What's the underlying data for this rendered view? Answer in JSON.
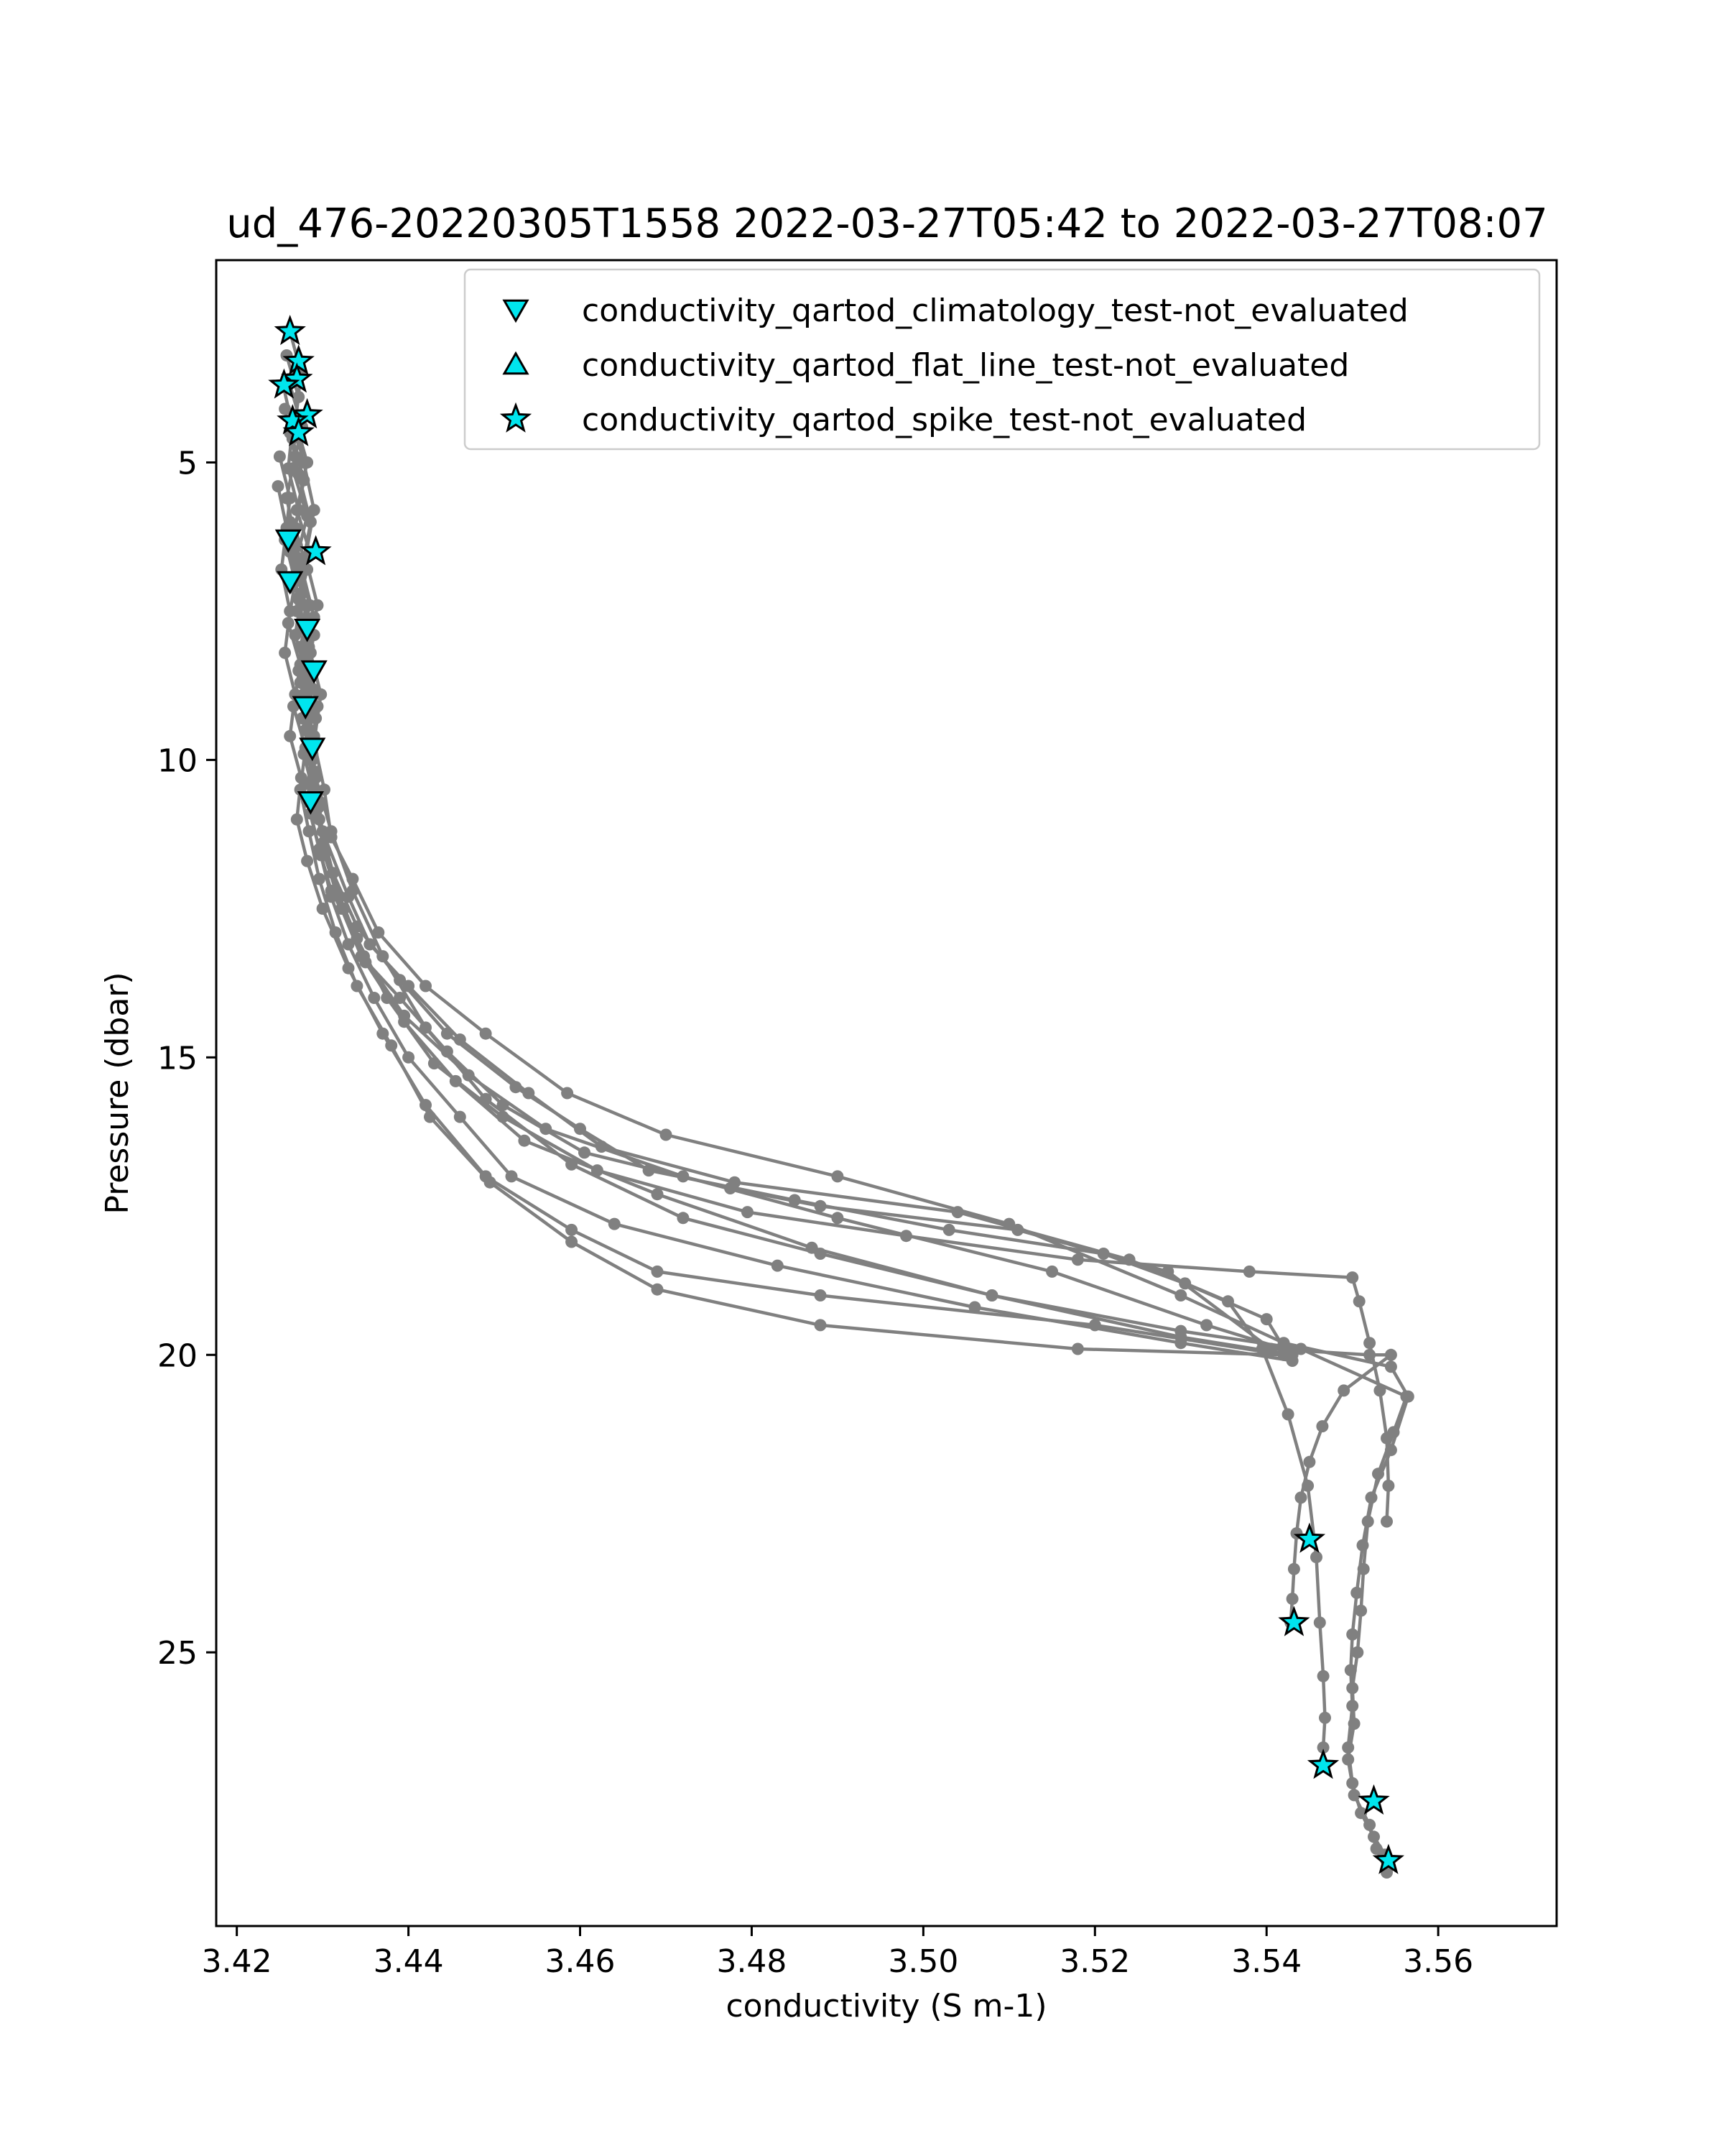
{
  "chart_data": {
    "type": "line",
    "title": "ud_476-20220305T1558 2022-03-27T05:42 to 2022-03-27T08:07",
    "xlabel": "conductivity (S m-1)",
    "ylabel": "Pressure (dbar)",
    "xlim": [
      3.4176,
      3.5738
    ],
    "ylim": [
      29.6,
      1.6
    ],
    "y_inverted": true,
    "x_ticks": [
      3.42,
      3.44,
      3.46,
      3.48,
      3.5,
      3.52,
      3.54,
      3.56
    ],
    "x_tick_labels": [
      "3.42",
      "3.44",
      "3.46",
      "3.48",
      "3.50",
      "3.52",
      "3.54",
      "3.56"
    ],
    "y_ticks": [
      5,
      10,
      15,
      20,
      25
    ],
    "y_tick_labels": [
      "5",
      "10",
      "15",
      "20",
      "25"
    ],
    "grid": false,
    "legend_position": "top-right",
    "colors": {
      "profile_line": "#808080",
      "flag_marker_fill": "#00e5ee",
      "flag_marker_edge": "#000000"
    },
    "profiles": [
      {
        "x": [
          3.4262,
          3.4275,
          3.4268,
          3.4282,
          3.427,
          3.4285,
          3.4275,
          3.429,
          3.428,
          3.4292,
          3.4285,
          3.4295,
          3.43,
          3.4322,
          3.4345,
          3.439,
          3.4445,
          3.451,
          3.4605,
          3.4775,
          3.488,
          3.511,
          3.5285,
          3.5405,
          3.552,
          3.5545,
          3.549,
          3.5465,
          3.545,
          3.544,
          3.5435,
          3.5432,
          3.543,
          3.5428
        ],
        "y": [
          2.8,
          3.5,
          4.3,
          5.0,
          5.8,
          6.5,
          7.2,
          7.9,
          8.6,
          9.3,
          10.0,
          10.8,
          11.5,
          12.5,
          13.3,
          14.0,
          14.9,
          15.8,
          16.6,
          17.2,
          17.5,
          17.9,
          18.6,
          19.9,
          20.0,
          20.0,
          20.6,
          21.2,
          21.8,
          22.4,
          23.0,
          23.6,
          24.1,
          24.5
        ]
      },
      {
        "x": [
          3.4258,
          3.4272,
          3.4265,
          3.4278,
          3.4268,
          3.4282,
          3.427,
          3.4286,
          3.4278,
          3.429,
          3.4283,
          3.43,
          3.433,
          3.4355,
          3.44,
          3.446,
          3.454,
          3.4625,
          3.478,
          3.504,
          3.524,
          3.5355,
          3.5395,
          3.5425,
          3.5448,
          3.5458,
          3.5462,
          3.5466,
          3.5468,
          3.5466,
          3.5465
        ],
        "y": [
          3.2,
          3.9,
          4.6,
          5.3,
          6.1,
          6.8,
          7.5,
          8.2,
          8.9,
          9.6,
          10.4,
          11.2,
          12.3,
          13.1,
          13.8,
          14.7,
          15.6,
          16.5,
          17.1,
          17.6,
          18.4,
          19.1,
          19.9,
          21.0,
          22.2,
          23.4,
          24.5,
          25.4,
          26.1,
          26.6,
          26.9
        ]
      },
      {
        "x": [
          3.4254,
          3.4265,
          3.426,
          3.4272,
          3.4262,
          3.4276,
          3.4268,
          3.4282,
          3.4276,
          3.4288,
          3.4282,
          3.4296,
          3.431,
          3.434,
          3.4375,
          3.443,
          3.451,
          3.462,
          3.4795,
          3.498,
          3.518,
          3.538,
          3.55,
          3.5508,
          3.552,
          3.5532,
          3.554,
          3.5542,
          3.554
        ],
        "y": [
          3.7,
          4.4,
          5.1,
          5.8,
          6.5,
          7.2,
          7.9,
          8.6,
          9.3,
          10.0,
          10.7,
          11.5,
          12.2,
          13.0,
          14.0,
          15.1,
          16.0,
          16.9,
          17.6,
          18.0,
          18.4,
          18.6,
          18.7,
          19.1,
          19.8,
          20.6,
          21.4,
          22.2,
          22.8
        ]
      },
      {
        "x": [
          3.4265,
          3.4278,
          3.429,
          3.428,
          3.4294,
          3.4284,
          3.4298,
          3.429,
          3.4302,
          3.431,
          3.4335,
          3.4365,
          3.442,
          3.449,
          3.4585,
          3.47,
          3.49,
          3.51,
          3.53,
          3.542,
          3.5545,
          3.5565,
          3.5545,
          3.5522,
          3.5512,
          3.5505,
          3.55,
          3.5498,
          3.55,
          3.5495,
          3.55,
          3.551,
          3.5525,
          3.5538,
          3.5542
        ],
        "y": [
          4.3,
          5.0,
          5.8,
          6.6,
          7.4,
          8.1,
          8.9,
          9.7,
          10.5,
          11.3,
          12.0,
          12.9,
          13.8,
          14.6,
          15.6,
          16.3,
          17.0,
          17.8,
          19.0,
          19.8,
          20.2,
          20.7,
          21.6,
          22.4,
          23.2,
          24.0,
          24.7,
          25.3,
          25.9,
          26.6,
          27.2,
          27.7,
          28.1,
          28.4,
          28.6
        ]
      },
      {
        "x": [
          3.4262,
          3.4272,
          3.4286,
          3.4276,
          3.429,
          3.428,
          3.4294,
          3.4288,
          3.4296,
          3.4302,
          3.4325,
          3.435,
          3.4395,
          3.4455,
          3.4535,
          3.469,
          3.487,
          3.508,
          3.53,
          3.544,
          3.5563,
          3.5548,
          3.553,
          3.5518,
          3.5513,
          3.551,
          3.5506,
          3.55,
          3.5502,
          3.5495,
          3.5502,
          3.552,
          3.5528,
          3.554
        ],
        "y": [
          4.5,
          5.2,
          6.0,
          6.8,
          7.6,
          8.3,
          9.1,
          9.9,
          10.7,
          11.6,
          12.5,
          13.4,
          14.4,
          15.4,
          16.4,
          17.3,
          18.2,
          19.0,
          19.6,
          19.9,
          20.7,
          21.3,
          22.0,
          22.8,
          23.6,
          24.3,
          25.0,
          25.6,
          26.2,
          26.8,
          27.4,
          27.9,
          28.3,
          28.7
        ]
      },
      {
        "x": [
          3.426,
          3.4276,
          3.4265,
          3.4282,
          3.427,
          3.4285,
          3.4274,
          3.4288,
          3.428,
          3.4292,
          3.4296,
          3.4312,
          3.434,
          3.439,
          3.4445,
          3.4525,
          3.46,
          3.468,
          3.485,
          3.503,
          3.521,
          3.5305,
          3.54,
          3.5425
        ],
        "y": [
          3.6,
          4.4,
          5.1,
          5.9,
          6.6,
          7.4,
          8.1,
          8.8,
          9.5,
          10.2,
          11.0,
          11.9,
          12.8,
          13.7,
          14.6,
          15.5,
          16.2,
          16.9,
          17.4,
          17.9,
          18.3,
          18.8,
          19.4,
          20.0
        ]
      },
      {
        "x": [
          3.4256,
          3.4268,
          3.4258,
          3.427,
          3.4264,
          3.4278,
          3.4272,
          3.4284,
          3.4278,
          3.429,
          3.43,
          3.432,
          3.4348,
          3.4395,
          3.447,
          3.456,
          3.472,
          3.49,
          3.515,
          3.533,
          3.542
        ],
        "y": [
          4.1,
          4.9,
          5.6,
          6.4,
          7.1,
          7.8,
          8.5,
          9.2,
          9.9,
          10.6,
          11.4,
          12.3,
          13.3,
          14.3,
          15.3,
          16.2,
          17.0,
          17.7,
          18.6,
          19.5,
          19.9
        ]
      },
      {
        "x": [
          3.425,
          3.4262,
          3.4256,
          3.4268,
          3.426,
          3.4274,
          3.4266,
          3.428,
          3.4274,
          3.4284,
          3.4296,
          3.4315,
          3.434,
          3.438,
          3.4425,
          3.4495,
          3.459,
          3.469,
          3.488,
          3.518,
          3.542
        ],
        "y": [
          4.9,
          5.6,
          6.3,
          7.0,
          7.7,
          8.4,
          9.1,
          9.8,
          10.5,
          11.2,
          12.0,
          12.9,
          13.8,
          14.8,
          16.0,
          17.1,
          18.1,
          18.9,
          19.5,
          19.9,
          20.0
        ]
      },
      {
        "x": [
          3.4248,
          3.4258,
          3.4252,
          3.4262,
          3.4256,
          3.4268,
          3.4262,
          3.4275,
          3.427,
          3.4282,
          3.43,
          3.433,
          3.437,
          3.442,
          3.449,
          3.459,
          3.469,
          3.488,
          3.52,
          3.542
        ],
        "y": [
          5.4,
          6.1,
          6.8,
          7.5,
          8.2,
          8.9,
          9.6,
          10.3,
          11.0,
          11.7,
          12.5,
          13.5,
          14.6,
          15.8,
          17.0,
          17.9,
          18.6,
          19.0,
          19.5,
          20.0
        ]
      },
      {
        "x": [
          3.4262,
          3.427,
          3.428,
          3.4276,
          3.4286,
          3.428,
          3.4292,
          3.4286,
          3.4298,
          3.431,
          3.433,
          3.436,
          3.44,
          3.446,
          3.452,
          3.464,
          3.483,
          3.506,
          3.53,
          3.543
        ],
        "y": [
          6.0,
          6.7,
          7.4,
          8.1,
          8.8,
          9.5,
          10.2,
          10.9,
          11.6,
          12.3,
          13.1,
          14.0,
          15.0,
          16.0,
          17.0,
          17.8,
          18.5,
          19.2,
          19.8,
          20.1
        ]
      },
      {
        "x": [
          3.4262,
          3.4272,
          3.4282,
          3.4274,
          3.4285,
          3.4292,
          3.431,
          3.4335,
          3.437,
          3.442,
          3.449,
          3.459,
          3.472,
          3.488,
          3.508,
          3.53,
          3.543
        ],
        "y": [
          6.5,
          7.3,
          8.0,
          8.7,
          9.5,
          10.3,
          11.2,
          12.2,
          13.3,
          14.5,
          15.7,
          16.8,
          17.7,
          18.3,
          19.0,
          19.7,
          20.0
        ]
      }
    ],
    "flag_markers": {
      "climatology": {
        "x": [
          3.426,
          3.4262,
          3.4282,
          3.429,
          3.428,
          3.4288,
          3.4286
        ],
        "y": [
          6.3,
          7.0,
          7.8,
          8.5,
          9.1,
          9.8,
          10.7
        ]
      },
      "flat_line": {
        "x": [],
        "y": []
      },
      "spike": {
        "x": [
          3.4262,
          3.4272,
          3.427,
          3.4255,
          3.4282,
          3.4265,
          3.4272,
          3.4292,
          3.545,
          3.5432,
          3.5466,
          3.5525,
          3.5542
        ],
        "y": [
          2.8,
          3.3,
          3.6,
          3.7,
          4.2,
          4.3,
          4.5,
          6.5,
          23.1,
          24.5,
          26.9,
          27.5,
          28.5
        ]
      }
    },
    "legend": [
      {
        "label": "conductivity_qartod_climatology_test-not_evaluated",
        "marker": "triangle-down"
      },
      {
        "label": "conductivity_qartod_flat_line_test-not_evaluated",
        "marker": "triangle-up"
      },
      {
        "label": "conductivity_qartod_spike_test-not_evaluated",
        "marker": "star"
      }
    ]
  }
}
